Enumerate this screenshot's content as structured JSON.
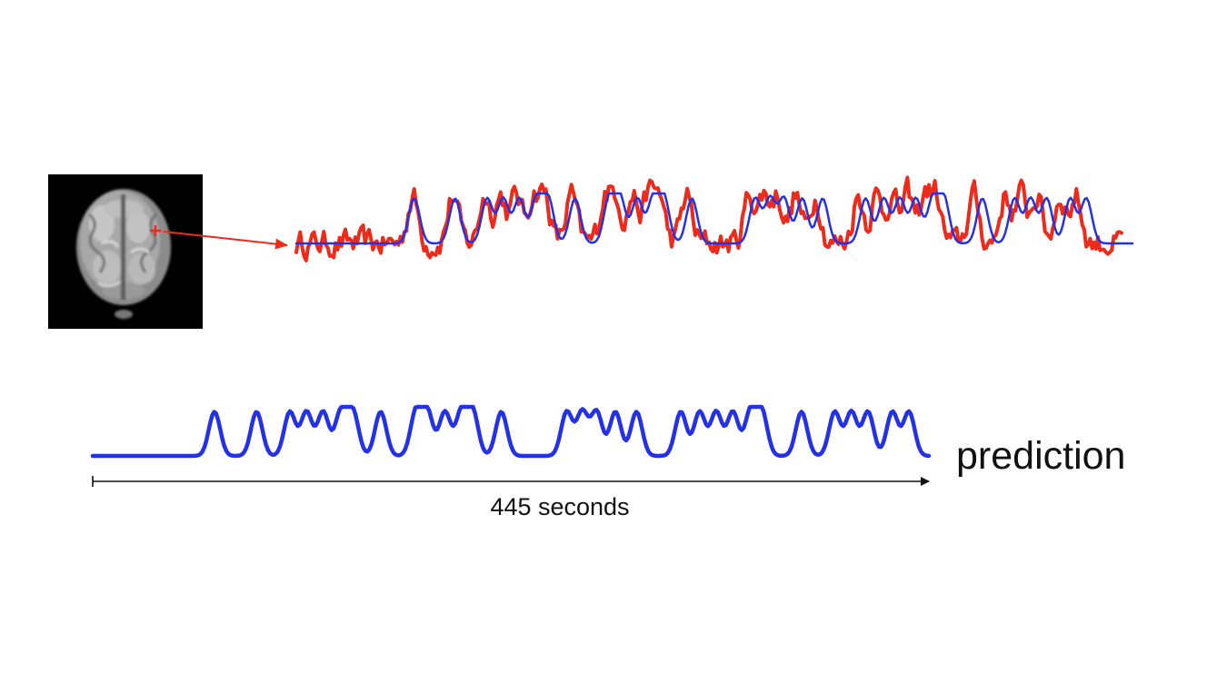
{
  "figure": {
    "prediction_label": "prediction",
    "duration_label": "445 seconds"
  },
  "colors": {
    "measured": "#ee2b1b",
    "model": "#2431e6",
    "arrow": "#111111",
    "brain_background": "#000000",
    "pointer": "#ee2b1b"
  },
  "signals": {
    "model_pulse_centers": [
      0.11,
      0.148,
      0.178,
      0.193,
      0.208,
      0.224,
      0.235,
      0.26,
      0.292,
      0.302,
      0.318,
      0.333,
      0.343,
      0.369,
      0.428,
      0.442,
      0.455,
      0.472,
      0.491,
      0.531,
      0.548,
      0.563,
      0.578,
      0.594,
      0.604,
      0.64,
      0.67,
      0.685,
      0.7,
      0.722,
      0.737
    ],
    "duration_seconds": 445
  }
}
